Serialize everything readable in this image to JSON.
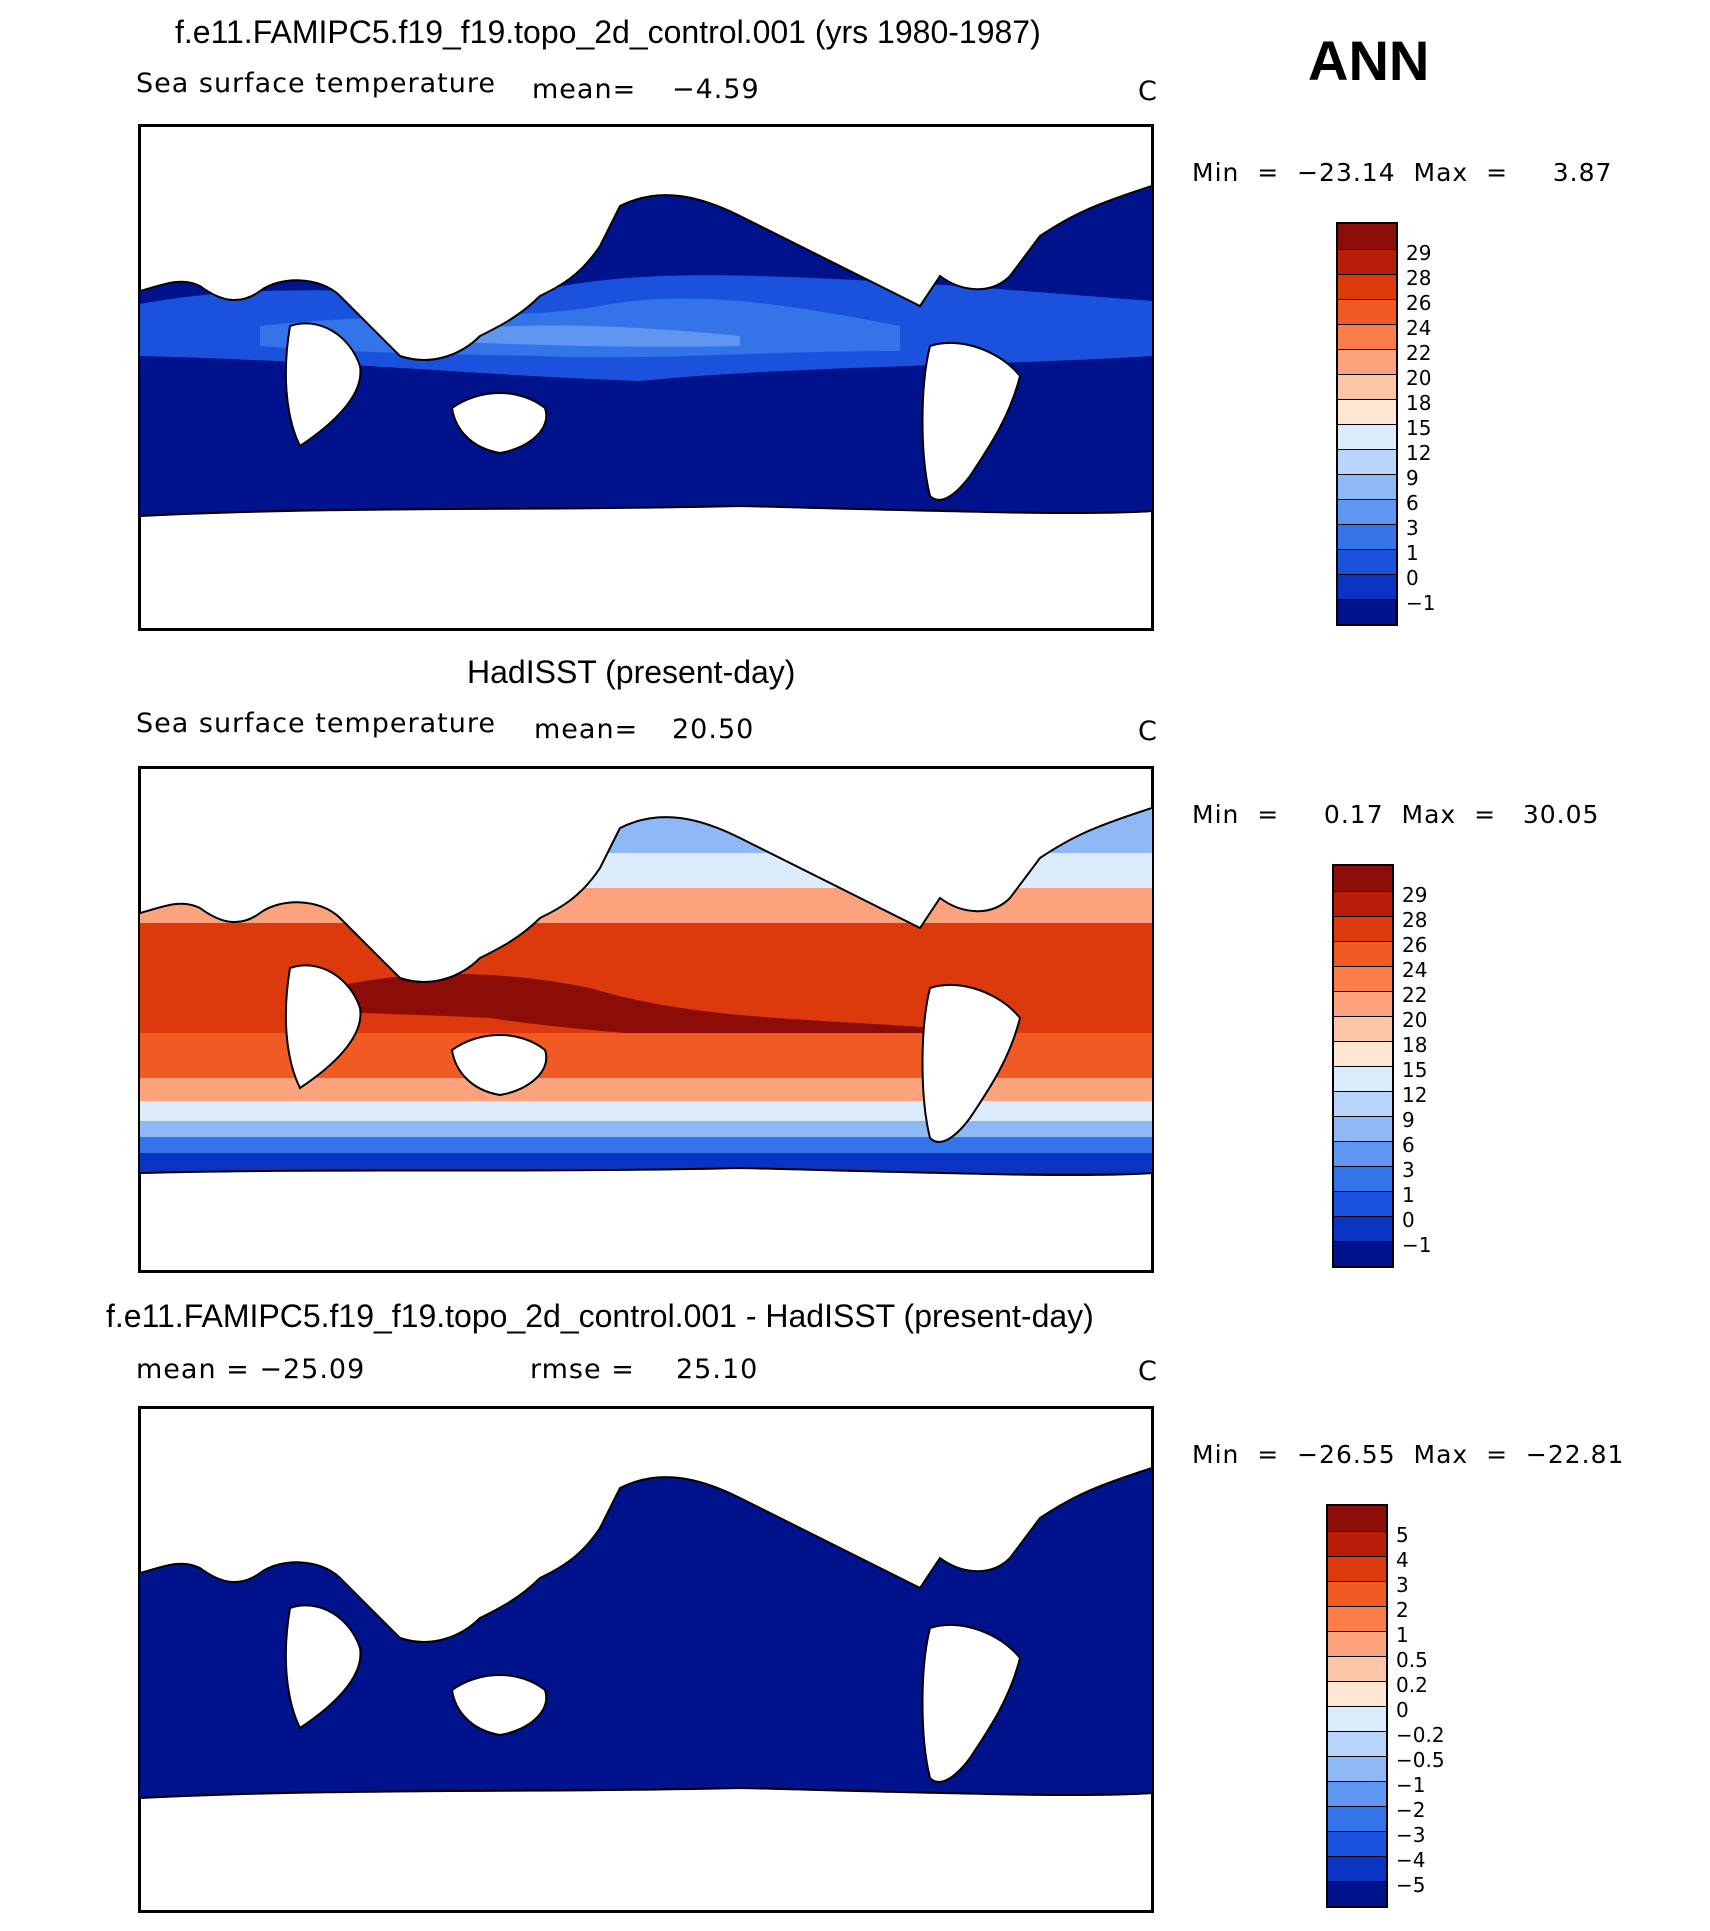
{
  "season": "ANN",
  "colors": {
    "ocean_deep": "#00128c",
    "land": "#ffffff",
    "border": "#000000"
  },
  "panels": [
    {
      "title": "f.e11.FAMIPC5.f19_f19.topo_2d_control.001 (yrs 1980-1987)",
      "variable": "Sea surface temperature",
      "stat1_label": "mean=",
      "stat1_value": "−4.59",
      "units": "C",
      "minmax": "Min  =  −23.14  Max  =     3.87",
      "colorbar_labels": [
        "29",
        "28",
        "26",
        "24",
        "22",
        "20",
        "18",
        "15",
        "12",
        "9",
        "6",
        "3",
        "1",
        "0",
        "−1"
      ],
      "colorbar_colors": [
        "#8c0d07",
        "#b81d0a",
        "#dc3a0d",
        "#f15a22",
        "#fb7d4a",
        "#fca27c",
        "#fdc5a8",
        "#fee6d3",
        "#dcecfc",
        "#b9d5fb",
        "#8fb8f7",
        "#5f96f1",
        "#3574e8",
        "#1a52dd",
        "#0a33c4",
        "#00128c"
      ],
      "map_style": "model"
    },
    {
      "title": "HadISST (present-day)",
      "variable": "Sea surface temperature",
      "stat1_label": "mean=",
      "stat1_value": "20.50",
      "units": "C",
      "minmax": "Min  =     0.17  Max  =   30.05",
      "colorbar_labels": [
        "29",
        "28",
        "26",
        "24",
        "22",
        "20",
        "18",
        "15",
        "12",
        "9",
        "6",
        "3",
        "1",
        "0",
        "−1"
      ],
      "colorbar_colors": [
        "#8c0d07",
        "#b81d0a",
        "#dc3a0d",
        "#f15a22",
        "#fb7d4a",
        "#fca27c",
        "#fdc5a8",
        "#fee6d3",
        "#dcecfc",
        "#b9d5fb",
        "#8fb8f7",
        "#5f96f1",
        "#3574e8",
        "#1a52dd",
        "#0a33c4",
        "#00128c"
      ],
      "map_style": "obs"
    },
    {
      "title": "f.e11.FAMIPC5.f19_f19.topo_2d_control.001 - HadISST (present-day)",
      "variable": "mean  =  −25.09",
      "stat1_label": "rmse  =",
      "stat1_value": "25.10",
      "units": "C",
      "minmax": "Min  =  −26.55  Max  =  −22.81",
      "colorbar_labels": [
        "5",
        "4",
        "3",
        "2",
        "1",
        "0.5",
        "0.2",
        "0",
        "−0.2",
        "−0.5",
        "−1",
        "−2",
        "−3",
        "−4",
        "−5"
      ],
      "colorbar_colors": [
        "#8c0d07",
        "#b81d0a",
        "#dc3a0d",
        "#f15a22",
        "#fb7d4a",
        "#fca27c",
        "#fdc5a8",
        "#fee6d3",
        "#dcecfc",
        "#b9d5fb",
        "#8fb8f7",
        "#5f96f1",
        "#3574e8",
        "#1a52dd",
        "#0a33c4",
        "#00128c"
      ],
      "map_style": "diff"
    }
  ]
}
